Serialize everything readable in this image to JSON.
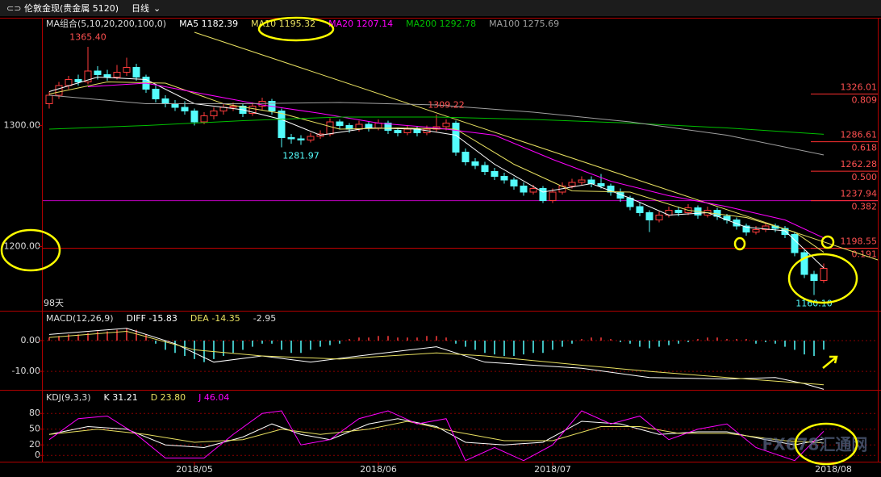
{
  "toolbar": {
    "symbol": "伦敦金现(贵金属 5120)",
    "period": "日线"
  },
  "watermark": "FX678汇通网",
  "chart_data": [
    {
      "type": "candlestick",
      "title": "MA组合(5,10,20,200,100,0)",
      "up_color": "#ff3c3c",
      "down_color": "#54fcfc",
      "ylim": [
        1147,
        1389
      ],
      "yticks": [
        {
          "value": 1200,
          "label": "1200.00"
        },
        {
          "value": 1300,
          "label": "1300.00"
        }
      ],
      "xticks": [
        {
          "value": 15,
          "label": "2018/05"
        },
        {
          "value": 34,
          "label": "2018/06"
        },
        {
          "value": 52,
          "label": "2018/07"
        },
        {
          "value": 81,
          "label": "2018/08"
        }
      ],
      "candles": [
        [
          1318,
          1328,
          1314,
          1325
        ],
        [
          1325,
          1336,
          1322,
          1333
        ],
        [
          1333,
          1341,
          1330,
          1338
        ],
        [
          1338,
          1342,
          1333,
          1336
        ],
        [
          1336,
          1365,
          1334,
          1345
        ],
        [
          1345,
          1349,
          1338,
          1342
        ],
        [
          1342,
          1346,
          1337,
          1340
        ],
        [
          1340,
          1350,
          1338,
          1344
        ],
        [
          1344,
          1356,
          1341,
          1348
        ],
        [
          1348,
          1351,
          1337,
          1340
        ],
        [
          1340,
          1342,
          1327,
          1330
        ],
        [
          1330,
          1333,
          1319,
          1322
        ],
        [
          1322,
          1325,
          1315,
          1318
        ],
        [
          1318,
          1321,
          1312,
          1315
        ],
        [
          1315,
          1320,
          1309,
          1312
        ],
        [
          1312,
          1314,
          1300,
          1303
        ],
        [
          1303,
          1311,
          1301,
          1308
        ],
        [
          1308,
          1315,
          1305,
          1312
        ],
        [
          1312,
          1318,
          1309,
          1315
        ],
        [
          1315,
          1319,
          1312,
          1316
        ],
        [
          1316,
          1318,
          1307,
          1310
        ],
        [
          1310,
          1319,
          1308,
          1316
        ],
        [
          1316,
          1323,
          1313,
          1320
        ],
        [
          1320,
          1322,
          1309,
          1312
        ],
        [
          1312,
          1314,
          1282,
          1290
        ],
        [
          1290,
          1293,
          1285,
          1289
        ],
        [
          1289,
          1292,
          1284,
          1288
        ],
        [
          1288,
          1294,
          1286,
          1291
        ],
        [
          1291,
          1296,
          1289,
          1293
        ],
        [
          1293,
          1306,
          1291,
          1303
        ],
        [
          1303,
          1305,
          1297,
          1300
        ],
        [
          1300,
          1302,
          1294,
          1297
        ],
        [
          1297,
          1304,
          1295,
          1301
        ],
        [
          1301,
          1303,
          1295,
          1298
        ],
        [
          1298,
          1305,
          1296,
          1302
        ],
        [
          1302,
          1304,
          1293,
          1296
        ],
        [
          1296,
          1298,
          1291,
          1294
        ],
        [
          1294,
          1300,
          1292,
          1297
        ],
        [
          1297,
          1299,
          1291,
          1294
        ],
        [
          1294,
          1300,
          1292,
          1297
        ],
        [
          1297,
          1309,
          1295,
          1299
        ],
        [
          1299,
          1305,
          1296,
          1302
        ],
        [
          1302,
          1304,
          1275,
          1278
        ],
        [
          1278,
          1281,
          1267,
          1270
        ],
        [
          1270,
          1273,
          1264,
          1267
        ],
        [
          1267,
          1270,
          1259,
          1262
        ],
        [
          1262,
          1265,
          1255,
          1258
        ],
        [
          1258,
          1261,
          1252,
          1255
        ],
        [
          1255,
          1257,
          1247,
          1250
        ],
        [
          1250,
          1253,
          1242,
          1245
        ],
        [
          1245,
          1251,
          1243,
          1248
        ],
        [
          1248,
          1250,
          1236,
          1238
        ],
        [
          1238,
          1248,
          1236,
          1245
        ],
        [
          1245,
          1253,
          1243,
          1250
        ],
        [
          1250,
          1256,
          1248,
          1253
        ],
        [
          1253,
          1258,
          1251,
          1255
        ],
        [
          1255,
          1258,
          1249,
          1252
        ],
        [
          1252,
          1260,
          1248,
          1250
        ],
        [
          1250,
          1252,
          1242,
          1245
        ],
        [
          1245,
          1248,
          1237,
          1240
        ],
        [
          1240,
          1242,
          1230,
          1233
        ],
        [
          1233,
          1236,
          1225,
          1228
        ],
        [
          1228,
          1230,
          1212,
          1222
        ],
        [
          1222,
          1229,
          1220,
          1226
        ],
        [
          1226,
          1233,
          1224,
          1230
        ],
        [
          1230,
          1233,
          1225,
          1228
        ],
        [
          1228,
          1235,
          1226,
          1232
        ],
        [
          1232,
          1234,
          1223,
          1226
        ],
        [
          1226,
          1233,
          1224,
          1230
        ],
        [
          1230,
          1232,
          1222,
          1225
        ],
        [
          1225,
          1227,
          1219,
          1222
        ],
        [
          1222,
          1224,
          1214,
          1217
        ],
        [
          1217,
          1219,
          1209,
          1212
        ],
        [
          1212,
          1217,
          1210,
          1214
        ],
        [
          1214,
          1220,
          1212,
          1217
        ],
        [
          1217,
          1219,
          1212,
          1215
        ],
        [
          1215,
          1217,
          1207,
          1210
        ],
        [
          1210,
          1212,
          1192,
          1195
        ],
        [
          1195,
          1197,
          1174,
          1177
        ],
        [
          1177,
          1180,
          1160,
          1172
        ],
        [
          1172,
          1186,
          1170,
          1182
        ]
      ],
      "lines": [
        {
          "name": "MA5 1182.39",
          "color": "#ffffff",
          "x": [
            0,
            5,
            10,
            15,
            20,
            24,
            28,
            33,
            38,
            42,
            46,
            51,
            56,
            60,
            64,
            68,
            72,
            76,
            80
          ],
          "values": [
            1328,
            1340,
            1338,
            1318,
            1313,
            1305,
            1292,
            1298,
            1297,
            1292,
            1268,
            1245,
            1252,
            1240,
            1226,
            1228,
            1216,
            1213,
            1182.39
          ]
        },
        {
          "name": "MA10 1195.32",
          "color": "#e8e060",
          "x": [
            0,
            6,
            12,
            18,
            24,
            30,
            36,
            42,
            48,
            54,
            60,
            66,
            72,
            77,
            80
          ],
          "values": [
            1326,
            1336,
            1335,
            1318,
            1310,
            1297,
            1298,
            1297,
            1268,
            1246,
            1245,
            1230,
            1224,
            1212,
            1195.32
          ]
        },
        {
          "name": "MA20 1207.14",
          "color": "#ff00ff",
          "x": [
            4,
            10,
            16,
            22,
            28,
            34,
            40,
            46,
            52,
            58,
            64,
            70,
            76,
            80
          ],
          "values": [
            1332,
            1335,
            1326,
            1317,
            1310,
            1302,
            1298,
            1292,
            1272,
            1254,
            1242,
            1233,
            1222,
            1207.14
          ]
        },
        {
          "name": "MA200 1292.78",
          "color": "#00c000",
          "x": [
            0,
            10,
            20,
            30,
            40,
            50,
            60,
            70,
            80
          ],
          "values": [
            1297,
            1300,
            1304,
            1307,
            1307,
            1305,
            1302,
            1298,
            1292.78
          ]
        },
        {
          "name": "MA100 1275.69",
          "color": "#a0a0a0",
          "x": [
            0,
            10,
            20,
            30,
            40,
            50,
            60,
            70,
            80
          ],
          "values": [
            1325,
            1318,
            1318,
            1319,
            1317,
            1311,
            1303,
            1292,
            1275.69
          ]
        }
      ],
      "trendline": {
        "color": "#e8e060",
        "x": [
          15,
          86
        ],
        "values": [
          1377,
          1189
        ]
      },
      "levels": [
        {
          "price": 1326.01,
          "ratio": 0.809
        },
        {
          "price": 1286.61,
          "ratio": 0.618
        },
        {
          "price": 1262.28,
          "ratio": {
            "value": 0.5,
            "label": "0.500"
          }
        },
        {
          "price": 1237.94,
          "ratio": 0.382,
          "full_line": "#c000c0"
        },
        {
          "price": 1198.55,
          "ratio": 0.191,
          "full_line": "#d00000"
        }
      ],
      "annotations": [
        {
          "x": 4,
          "value": 1365.4,
          "label": "1365.40",
          "color": "#ff5050",
          "anchor": "above"
        },
        {
          "x": 26,
          "value": 1281.97,
          "color": "#54fcfc",
          "anchor": "below"
        },
        {
          "x": 41,
          "value": 1309.22,
          "color": "#ff5050",
          "anchor": "above"
        },
        {
          "x": 79,
          "value": 1160.1,
          "label": "1160.10",
          "color": "#54fcfc",
          "anchor": "below"
        }
      ],
      "day_count": "98天"
    },
    {
      "type": "macd",
      "title": "MACD(12,26,9)",
      "ylim": [
        -16,
        9.7
      ],
      "yticks": [
        {
          "value": 0,
          "label": "0.00"
        },
        {
          "value": -10,
          "label": "-10.00"
        }
      ],
      "grid": true,
      "histogram": [
        1,
        1.5,
        2,
        2,
        2.5,
        3,
        3,
        3.5,
        4,
        3.5,
        2,
        -1,
        -3,
        -4,
        -5,
        -6,
        -7,
        -6,
        -5,
        -4,
        -3,
        -2,
        -1,
        -1,
        -3,
        -4,
        -4,
        -3,
        -2,
        -1.5,
        -1,
        0.5,
        1,
        1,
        1.5,
        1.5,
        1,
        1,
        1,
        1.5,
        1.5,
        1,
        -1,
        -2,
        -3,
        -4,
        -4.5,
        -5,
        -5,
        -4.5,
        -4,
        -4,
        -3,
        -2,
        -1,
        0.5,
        1,
        1,
        0.5,
        -0.5,
        -1,
        -2,
        -2.5,
        -2,
        -1.5,
        -1,
        -0.5,
        0.5,
        1,
        1,
        0.5,
        0.5,
        0.5,
        -1,
        -0.5,
        -1,
        -2,
        -3,
        -4.5,
        -5,
        -2.95
      ],
      "lines": [
        {
          "name": "DIFF -15.83",
          "color": "#ffffff",
          "x": [
            0,
            8,
            13,
            17,
            22,
            27,
            32,
            40,
            45,
            55,
            62,
            70,
            75,
            78,
            80
          ],
          "values": [
            2,
            4,
            -1,
            -7,
            -5,
            -7,
            -5,
            -2,
            -7,
            -9,
            -12,
            -12.5,
            -12,
            -14,
            -15.83
          ]
        },
        {
          "name": "DEA -14.35",
          "color": "#e8e060",
          "x": [
            0,
            8,
            15,
            22,
            30,
            40,
            45,
            55,
            62,
            70,
            80
          ],
          "values": [
            1,
            3,
            -3,
            -5,
            -6,
            -4,
            -5,
            -8,
            -10,
            -12,
            -14.35
          ]
        }
      ]
    },
    {
      "type": "kdj",
      "title": "KDJ(9,3,3)",
      "ylim": [
        -12,
        125
      ],
      "yticks": [
        0,
        20,
        50,
        80
      ],
      "grid": true,
      "lines": [
        {
          "name": "K 31.21",
          "color": "#ffffff",
          "x": [
            0,
            4,
            8,
            12,
            16,
            20,
            23,
            26,
            29,
            33,
            36,
            40,
            43,
            47,
            51,
            55,
            59,
            63,
            67,
            70,
            74,
            77,
            80
          ],
          "values": [
            40,
            55,
            50,
            20,
            15,
            35,
            60,
            40,
            30,
            60,
            70,
            55,
            25,
            20,
            25,
            65,
            60,
            40,
            45,
            45,
            30,
            20,
            31.21
          ]
        },
        {
          "name": "D 23.80",
          "color": "#e8e060",
          "x": [
            0,
            5,
            10,
            15,
            20,
            24,
            28,
            33,
            37,
            42,
            47,
            52,
            57,
            61,
            65,
            70,
            76,
            80
          ],
          "values": [
            40,
            50,
            40,
            25,
            30,
            50,
            40,
            50,
            65,
            45,
            28,
            28,
            55,
            55,
            42,
            42,
            28,
            23.8
          ]
        },
        {
          "name": "J 46.04",
          "color": "#ff00ff",
          "x": [
            0,
            3,
            6,
            9,
            12,
            16,
            19,
            22,
            24,
            26,
            29,
            32,
            35,
            38,
            41,
            43,
            46,
            49,
            52,
            55,
            58,
            61,
            64,
            67,
            70,
            73,
            77,
            80
          ],
          "values": [
            30,
            70,
            75,
            40,
            -5,
            -5,
            40,
            80,
            85,
            20,
            30,
            70,
            85,
            60,
            70,
            -10,
            15,
            -10,
            20,
            85,
            60,
            75,
            30,
            50,
            60,
            15,
            -10,
            46.04
          ]
        }
      ]
    }
  ]
}
